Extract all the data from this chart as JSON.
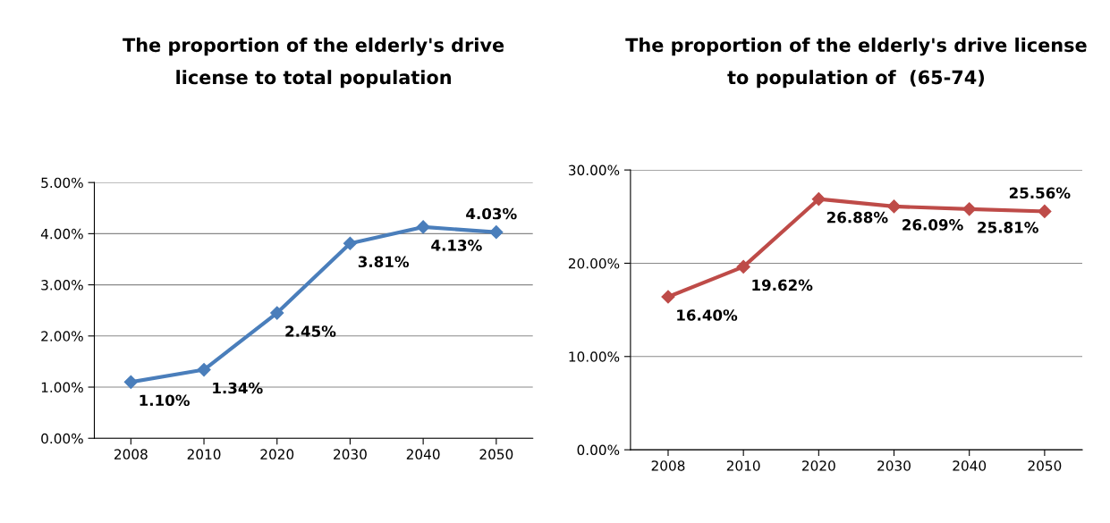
{
  "chart_data": [
    {
      "type": "line",
      "title": "The proportion of the elderly's drive\nlicense to total population",
      "categories": [
        "2008",
        "2010",
        "2020",
        "2030",
        "2040",
        "2050"
      ],
      "series": [
        {
          "color": "#4a7ebb",
          "values": [
            1.1,
            1.34,
            2.45,
            3.81,
            4.13,
            4.03
          ],
          "value_labels": [
            "1.10%",
            "1.34%",
            "2.45%",
            "3.81%",
            "4.13%",
            "4.03%"
          ]
        }
      ],
      "ylim": [
        0,
        5
      ],
      "yticks": [
        {
          "value": 0,
          "label": "0.00%"
        },
        {
          "value": 1,
          "label": "1.00%"
        },
        {
          "value": 2,
          "label": "2.00%"
        },
        {
          "value": 3,
          "label": "3.00%"
        },
        {
          "value": 4,
          "label": "4.00%"
        },
        {
          "value": 5,
          "label": "5.00%"
        }
      ],
      "grid": "y",
      "marker": "diamond",
      "line_style": "solid"
    },
    {
      "type": "line",
      "title": "The proportion of the elderly's drive license\nto population of  (65-74)",
      "categories": [
        "2008",
        "2010",
        "2020",
        "2030",
        "2040",
        "2050"
      ],
      "series": [
        {
          "color": "#be4b48",
          "values": [
            16.4,
            19.62,
            26.88,
            26.09,
            25.81,
            25.56
          ],
          "value_labels": [
            "16.40%",
            "19.62%",
            "26.88%",
            "26.09%",
            "25.81%",
            "25.56%"
          ]
        }
      ],
      "ylim": [
        0,
        30
      ],
      "yticks": [
        {
          "value": 0,
          "label": "0.00%"
        },
        {
          "value": 10,
          "label": "10.00%"
        },
        {
          "value": 20,
          "label": "20.00%"
        },
        {
          "value": 30,
          "label": "30.00%"
        }
      ],
      "grid": "y",
      "marker": "diamond",
      "line_style": "solid"
    }
  ]
}
